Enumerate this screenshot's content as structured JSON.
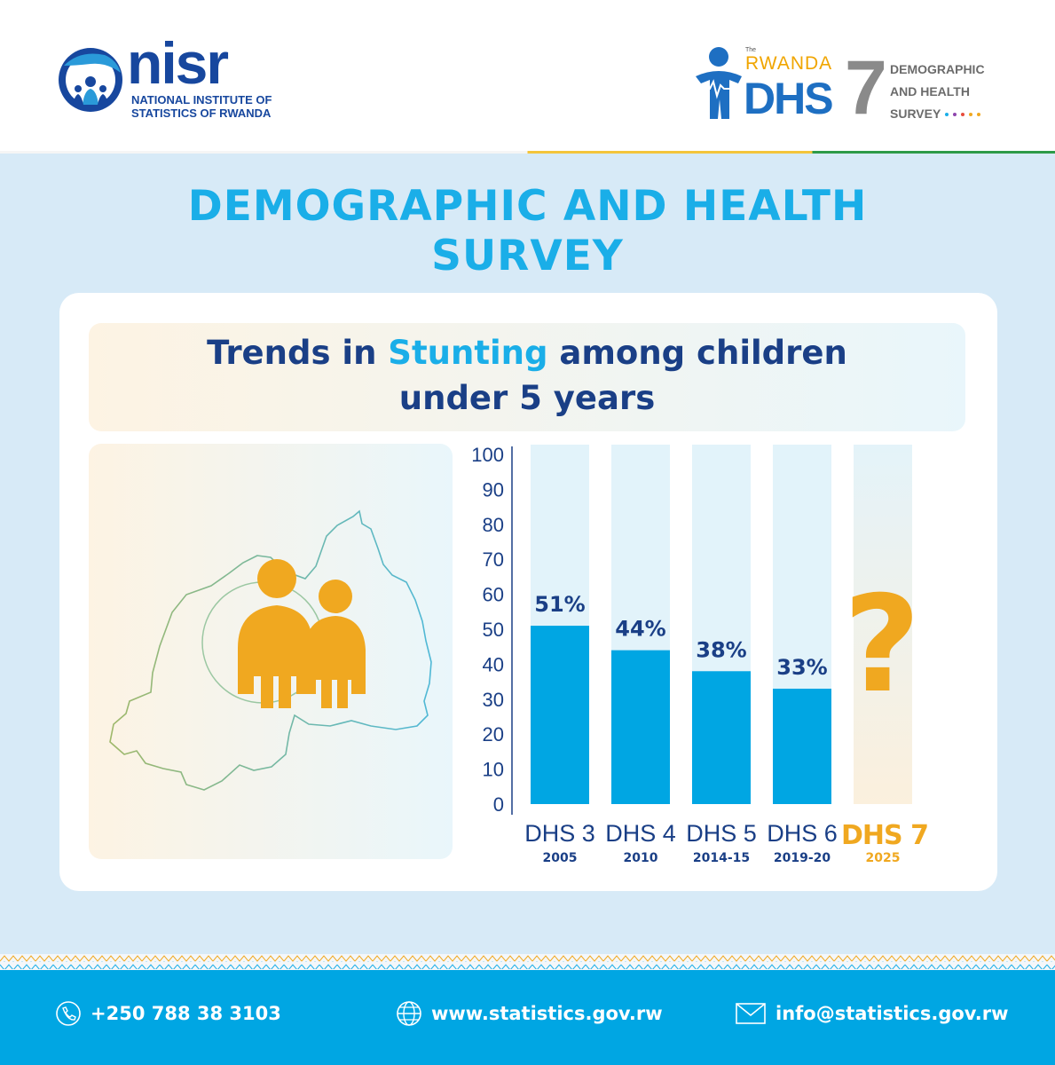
{
  "header": {
    "nisr_word": "nisr",
    "nisr_sub_line1": "NATIONAL INSTITUTE OF",
    "nisr_sub_line2": "STATISTICS OF RWANDA",
    "dhs_the": "The",
    "dhs_rwanda": "RWANDA",
    "dhs_big": "DHS",
    "dhs_seven": "7",
    "dhs_side_line1": "DEMOGRAPHIC",
    "dhs_side_line2": "AND HEALTH",
    "dhs_side_line3": "SURVEY"
  },
  "title_line1": "DEMOGRAPHIC AND HEALTH",
  "title_line2": "SURVEY",
  "subtitle": {
    "pre": "Trends in ",
    "highlight": "Stunting",
    "post": " among children",
    "line2": "under 5 years"
  },
  "chart_data": {
    "type": "bar",
    "categories": [
      "DHS 3",
      "DHS 4",
      "DHS 5",
      "DHS 6",
      "DHS 7"
    ],
    "years": [
      "2005",
      "2010",
      "2014-15",
      "2019-20",
      "2025"
    ],
    "values": [
      51,
      44,
      38,
      33,
      null
    ],
    "value_labels": [
      "51%",
      "44%",
      "38%",
      "33%",
      "?"
    ],
    "ylim": [
      0,
      100
    ],
    "yticks": [
      0,
      10,
      20,
      30,
      40,
      50,
      60,
      70,
      80,
      90,
      100
    ],
    "bar_color": "#00a6e3",
    "track_color": "#e2f3fa",
    "highlight_color": "#f0a820",
    "label_color": "#1a3f86"
  },
  "footer": {
    "phone": "+250 788 38 3103",
    "website": "www.statistics.gov.rw",
    "email": "info@statistics.gov.rw"
  },
  "colors": {
    "accent": "#1aaee8",
    "navy": "#1a3f86",
    "orange": "#f0a820",
    "background": "#d7eaf7",
    "footer": "#00a6e3"
  }
}
